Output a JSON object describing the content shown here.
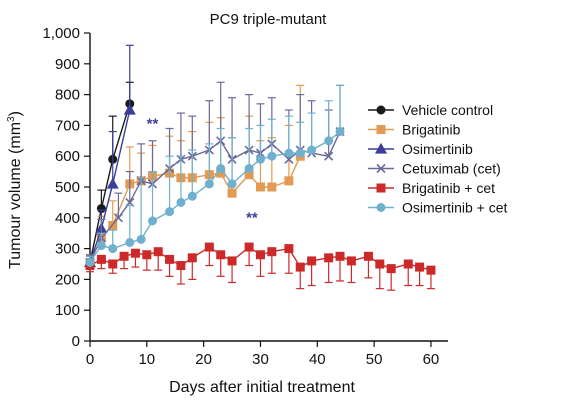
{
  "chart_data": {
    "type": "line",
    "title": "PC9 triple-mutant",
    "xlabel": "Days after initial treatment",
    "ylabel": "Tumour volume (mm",
    "ylabel_sup": "3",
    "ylabel_close": ")",
    "xlim": [
      0,
      63
    ],
    "ylim": [
      0,
      1000
    ],
    "xticks": [
      0,
      10,
      20,
      30,
      40,
      50,
      60
    ],
    "xtick_labels": [
      "0",
      "10",
      "20",
      "30",
      "40",
      "50",
      "60"
    ],
    "yticks": [
      0,
      100,
      200,
      300,
      400,
      500,
      600,
      700,
      800,
      900,
      1000
    ],
    "ytick_labels": [
      "0",
      "100",
      "200",
      "300",
      "400",
      "500",
      "600",
      "700",
      "800",
      "900",
      "1,000"
    ],
    "legend_position": "right",
    "annotations": [
      {
        "text": "**",
        "x": 11,
        "y": 690,
        "color": "#3a3f9a"
      },
      {
        "text": "**",
        "x": 28.5,
        "y": 385,
        "color": "#3a3f9a"
      }
    ],
    "series": [
      {
        "name": "Vehicle control",
        "color": "#1a1a1a",
        "marker": "circle",
        "x": [
          0,
          2,
          4,
          7
        ],
        "y": [
          255,
          430,
          590,
          770
        ],
        "err": [
          20,
          60,
          140,
          70
        ]
      },
      {
        "name": "Brigatinib",
        "color": "#e39a52",
        "marker": "square",
        "x": [
          0,
          2,
          4,
          7,
          9,
          11,
          14,
          16,
          18,
          21,
          23,
          25,
          28,
          30,
          32,
          35,
          37
        ],
        "y": [
          255,
          335,
          375,
          510,
          520,
          535,
          545,
          530,
          530,
          540,
          545,
          480,
          540,
          500,
          500,
          520,
          600
        ],
        "err": [
          25,
          70,
          80,
          120,
          90,
          100,
          120,
          120,
          150,
          170,
          180,
          180,
          190,
          150,
          160,
          180,
          230
        ]
      },
      {
        "name": "Osimertinib",
        "color": "#3a3f9a",
        "marker": "triangle",
        "x": [
          0,
          2,
          4,
          7
        ],
        "y": [
          255,
          365,
          510,
          750
        ],
        "err": [
          20,
          60,
          170,
          210
        ]
      },
      {
        "name": "Cetuximab (cet)",
        "color": "#6a6a9a",
        "marker": "x",
        "x": [
          0,
          2,
          5,
          7,
          9,
          11,
          14,
          16,
          18,
          21,
          23,
          25,
          28,
          30,
          32,
          35,
          37,
          39,
          42,
          44
        ],
        "y": [
          255,
          335,
          400,
          450,
          520,
          510,
          560,
          590,
          600,
          620,
          650,
          590,
          620,
          610,
          640,
          590,
          620,
          610,
          600,
          680
        ],
        "err": [
          25,
          60,
          80,
          100,
          120,
          140,
          130,
          150,
          130,
          160,
          190,
          200,
          180,
          160,
          150,
          160,
          180,
          170,
          150,
          150
        ]
      },
      {
        "name": "Brigatinib + cet",
        "color": "#cc2a2a",
        "marker": "square",
        "x": [
          0,
          2,
          4,
          6,
          8,
          10,
          12,
          14,
          16,
          18,
          21,
          23,
          25,
          28,
          30,
          32,
          35,
          37,
          39,
          42,
          44,
          46,
          49,
          51,
          53,
          56,
          58,
          60
        ],
        "y": [
          245,
          265,
          250,
          275,
          285,
          280,
          290,
          265,
          245,
          270,
          305,
          280,
          260,
          305,
          280,
          290,
          300,
          240,
          260,
          270,
          275,
          260,
          275,
          250,
          235,
          250,
          240,
          230
        ],
        "err": [
          20,
          30,
          30,
          40,
          45,
          50,
          60,
          55,
          60,
          70,
          60,
          70,
          70,
          60,
          70,
          70,
          80,
          70,
          80,
          80,
          80,
          70,
          70,
          80,
          70,
          70,
          60,
          60
        ]
      },
      {
        "name": "Osimertinib + cet",
        "color": "#6fb0cf",
        "marker": "circle",
        "x": [
          0,
          2,
          4,
          7,
          9,
          11,
          14,
          16,
          18,
          21,
          23,
          25,
          28,
          30,
          32,
          35,
          37,
          39,
          42,
          44
        ],
        "y": [
          255,
          310,
          300,
          320,
          330,
          390,
          420,
          450,
          470,
          510,
          560,
          510,
          560,
          590,
          600,
          610,
          610,
          620,
          650,
          680
        ],
        "err": [
          20,
          40,
          60,
          120,
          200,
          160,
          180,
          150,
          150,
          130,
          130,
          150,
          130,
          110,
          120,
          120,
          100,
          120,
          130,
          150
        ]
      }
    ]
  }
}
